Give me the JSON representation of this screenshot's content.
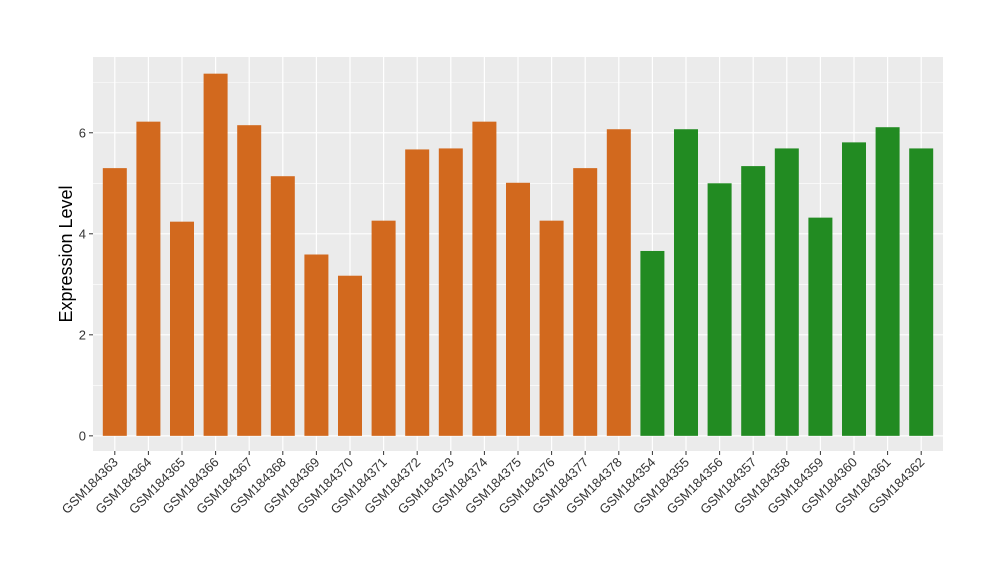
{
  "chart_data": {
    "type": "bar",
    "title": "",
    "xlabel": "",
    "ylabel": "Expression Level",
    "ylim": [
      -0.3,
      7.5
    ],
    "yticks": [
      0,
      2,
      4,
      6
    ],
    "grid": true,
    "categories": [
      "GSM184363",
      "GSM184364",
      "GSM184365",
      "GSM184366",
      "GSM184367",
      "GSM184368",
      "GSM184369",
      "GSM184370",
      "GSM184371",
      "GSM184372",
      "GSM184373",
      "GSM184374",
      "GSM184375",
      "GSM184376",
      "GSM184377",
      "GSM184378",
      "GSM184354",
      "GSM184355",
      "GSM184356",
      "GSM184357",
      "GSM184358",
      "GSM184359",
      "GSM184360",
      "GSM184361",
      "GSM184362"
    ],
    "values": [
      5.3,
      6.22,
      4.24,
      7.17,
      6.15,
      5.14,
      3.59,
      3.17,
      4.26,
      5.67,
      5.69,
      6.22,
      5.01,
      4.26,
      5.3,
      6.07,
      3.66,
      6.07,
      5.0,
      5.34,
      5.69,
      4.32,
      5.81,
      6.11,
      5.69
    ],
    "colors": [
      "#D2691E",
      "#D2691E",
      "#D2691E",
      "#D2691E",
      "#D2691E",
      "#D2691E",
      "#D2691E",
      "#D2691E",
      "#D2691E",
      "#D2691E",
      "#D2691E",
      "#D2691E",
      "#D2691E",
      "#D2691E",
      "#D2691E",
      "#D2691E",
      "#228B22",
      "#228B22",
      "#228B22",
      "#228B22",
      "#228B22",
      "#228B22",
      "#228B22",
      "#228B22",
      "#228B22"
    ],
    "panel_background": "#EBEBEB",
    "grid_color": "#FFFFFF"
  }
}
